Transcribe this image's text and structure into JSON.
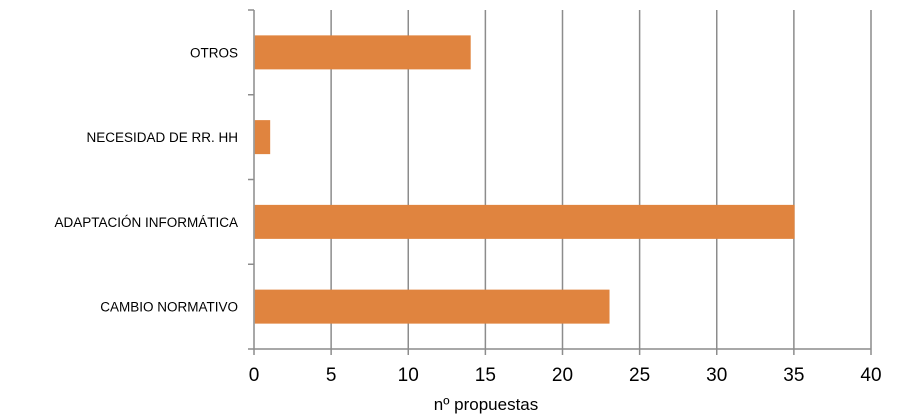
{
  "chart_data": {
    "type": "bar",
    "orientation": "horizontal",
    "categories": [
      "OTROS",
      "NECESIDAD DE RR. HH",
      "ADAPTACIÓN INFORMÁTICA",
      "CAMBIO NORMATIVO"
    ],
    "values": [
      14,
      1,
      35,
      23
    ],
    "title": "",
    "xlabel": "nº propuestas",
    "ylabel": "",
    "xlim": [
      0,
      40
    ],
    "x_ticks": [
      "0",
      "5",
      "10",
      "15",
      "20",
      "25",
      "30",
      "35",
      "40"
    ],
    "grid": "vertical",
    "legend": "none",
    "bar_color": "#E0843F",
    "grid_color": "#8C8C8C"
  }
}
